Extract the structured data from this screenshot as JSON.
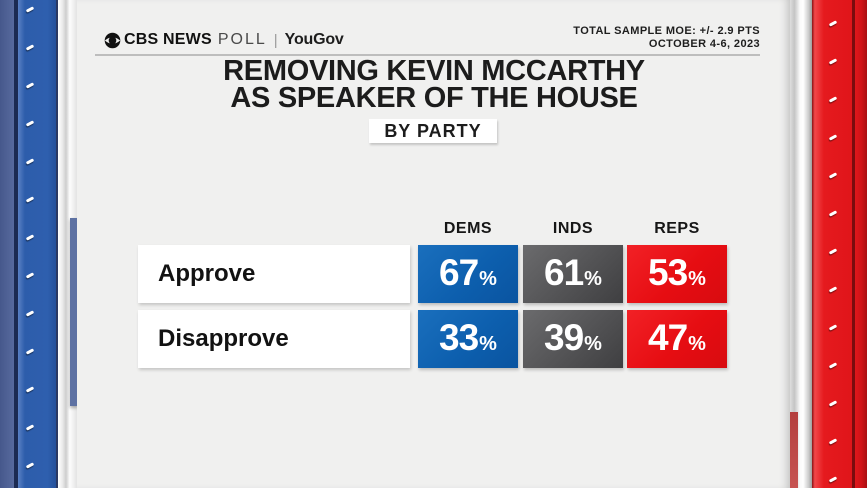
{
  "brand": {
    "cbs": "CBS NEWS",
    "poll": "POLL",
    "divider": "|",
    "partner": "YouGov"
  },
  "meta": {
    "moe": "TOTAL SAMPLE MOE: +/- 2.9 PTS",
    "date": "OCTOBER 4-6, 2023"
  },
  "title": {
    "line1": "REMOVING KEVIN MCCARTHY",
    "line2": "AS SPEAKER OF THE HOUSE"
  },
  "badge": "BY PARTY",
  "chart_data": {
    "type": "table",
    "title": "REMOVING KEVIN MCCARTHY AS SPEAKER OF THE HOUSE",
    "subtitle": "BY PARTY",
    "categories": [
      "DEMS",
      "INDS",
      "REPS"
    ],
    "rows": [
      {
        "label": "Approve",
        "values": [
          67,
          61,
          53
        ]
      },
      {
        "label": "Disapprove",
        "values": [
          33,
          39,
          47
        ]
      }
    ],
    "unit": "%",
    "column_colors": {
      "DEMS": "#0d5fae",
      "INDS": "#515153",
      "REPS": "#e60d12"
    }
  },
  "colors": {
    "dems_blue": "#0d5fae",
    "inds_gray": "#515153",
    "reps_red": "#e60d12",
    "left_binding_blue": "#2e5fae",
    "right_binding_red": "#e41b1e",
    "page_background": "#f0f0ef",
    "title_text": "#1c1c1c"
  }
}
